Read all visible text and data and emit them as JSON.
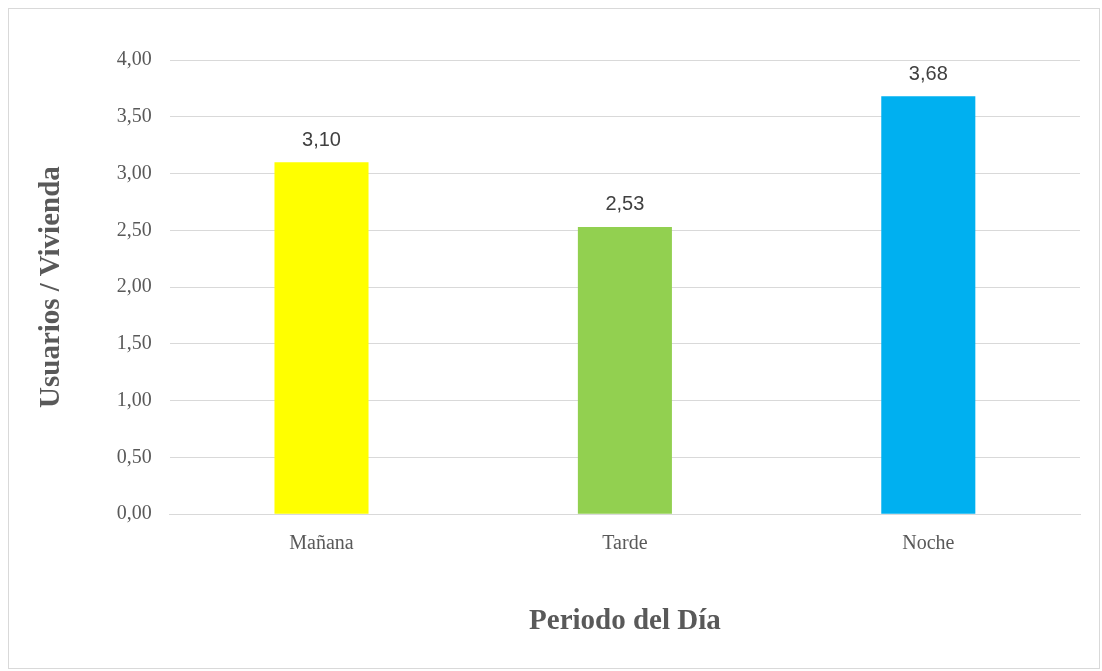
{
  "chart_data": {
    "type": "bar",
    "xlabel": "Periodo del Día",
    "ylabel": "Usuarios / Vivienda",
    "categories": [
      "Mañana",
      "Tarde",
      "Noche"
    ],
    "values": [
      3.1,
      2.53,
      3.68
    ],
    "colors": [
      "#ffff00",
      "#92d050",
      "#00b0f0"
    ],
    "value_labels": [
      "3,10",
      "2,53",
      "3,68"
    ],
    "ylim": [
      0,
      4
    ],
    "yticks": [
      {
        "value": 0,
        "label": "0,00"
      },
      {
        "value": 0.5,
        "label": "0,50"
      },
      {
        "value": 1,
        "label": "1,00"
      },
      {
        "value": 1.5,
        "label": "1,50"
      },
      {
        "value": 2,
        "label": "2,00"
      },
      {
        "value": 2.5,
        "label": "2,50"
      },
      {
        "value": 3,
        "label": "3,00"
      },
      {
        "value": 3.5,
        "label": "3,50"
      },
      {
        "value": 4,
        "label": "4,00"
      }
    ],
    "grid": "y",
    "legend": false
  }
}
